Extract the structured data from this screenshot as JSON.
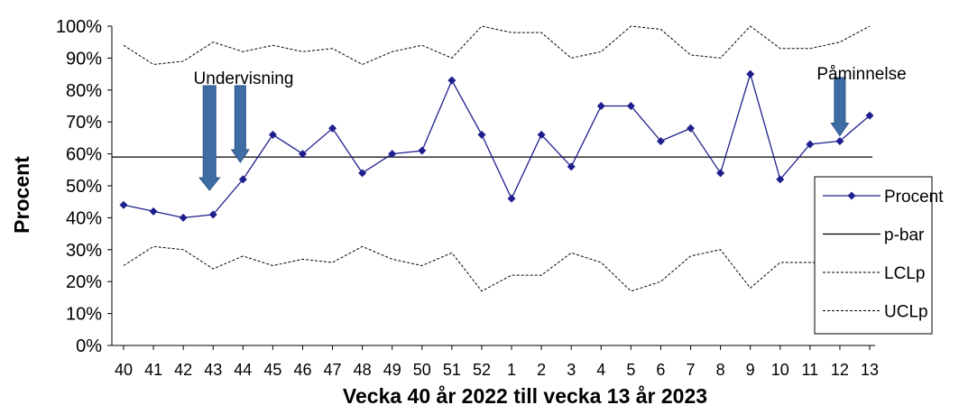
{
  "chart_data": {
    "type": "line",
    "title": "",
    "xlabel": "Vecka 40 år 2022 till vecka 13 år 2023",
    "ylabel": "Procent",
    "y_ticks": [
      "0%",
      "10%",
      "20%",
      "30%",
      "40%",
      "50%",
      "60%",
      "70%",
      "80%",
      "90%",
      "100%"
    ],
    "ylim": [
      0,
      100
    ],
    "grid": false,
    "legend_position": "right",
    "categories": [
      "40",
      "41",
      "42",
      "43",
      "44",
      "45",
      "46",
      "47",
      "48",
      "49",
      "50",
      "51",
      "52",
      "1",
      "2",
      "3",
      "4",
      "5",
      "6",
      "7",
      "8",
      "9",
      "10",
      "11",
      "12",
      "13"
    ],
    "series": [
      {
        "name": "Procent",
        "color": "#1f1f8f",
        "style": "solid-diamond",
        "values": [
          44,
          42,
          40,
          41,
          52,
          66,
          60,
          68,
          54,
          60,
          61,
          83,
          66,
          46,
          66,
          56,
          75,
          75,
          64,
          68,
          54,
          85,
          52,
          63,
          64,
          72
        ]
      },
      {
        "name": "p-bar",
        "color": "#000000",
        "style": "solid",
        "values": [
          59,
          59,
          59,
          59,
          59,
          59,
          59,
          59,
          59,
          59,
          59,
          59,
          59,
          59,
          59,
          59,
          59,
          59,
          59,
          59,
          59,
          59,
          59,
          59,
          59,
          59
        ]
      },
      {
        "name": "LCLp",
        "color": "#000000",
        "style": "dashed",
        "values": [
          25,
          31,
          30,
          24,
          28,
          25,
          27,
          26,
          31,
          27,
          25,
          29,
          17,
          22,
          22,
          29,
          26,
          17,
          20,
          28,
          30,
          18,
          26,
          26,
          26,
          26
        ]
      },
      {
        "name": "UCLp",
        "color": "#000000",
        "style": "dashed",
        "values": [
          94,
          88,
          89,
          95,
          92,
          94,
          92,
          93,
          88,
          92,
          94,
          90,
          100,
          98,
          98,
          90,
          92,
          100,
          99,
          91,
          90,
          100,
          93,
          93,
          95,
          100
        ]
      }
    ],
    "annotations": [
      {
        "text": "Undervisning",
        "arrows_at": [
          "43",
          "44"
        ]
      },
      {
        "text": "Påminnelse",
        "arrows_at": [
          "12"
        ]
      }
    ],
    "arrow_color": "#3e6da4"
  }
}
